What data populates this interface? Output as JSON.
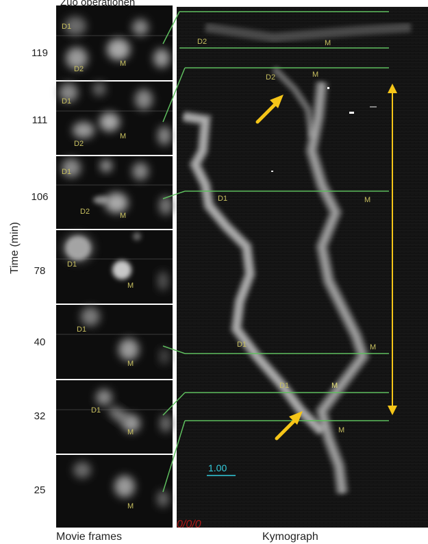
{
  "header_partial": "Zuo operationen",
  "y_axis_label": "Time (min)",
  "time_labels": [
    "119",
    "111",
    "106",
    "78",
    "40",
    "32",
    "25"
  ],
  "bottom_labels": {
    "movie": "Movie frames",
    "kymo": "Kymograph"
  },
  "frames": [
    {
      "time": "119",
      "labels": {
        "d1": "D1",
        "d2": "D2",
        "m": "M"
      }
    },
    {
      "time": "111",
      "labels": {
        "d1": "D1",
        "d2": "D2",
        "m": "M"
      }
    },
    {
      "time": "106",
      "labels": {
        "d1": "D1",
        "d2": "D2",
        "m": "M"
      }
    },
    {
      "time": "78",
      "labels": {
        "d1": "D1",
        "m": "M"
      }
    },
    {
      "time": "40",
      "labels": {
        "d1": "D1",
        "m": "M"
      }
    },
    {
      "time": "32",
      "labels": {
        "d1": "D1",
        "m": "M"
      }
    },
    {
      "time": "25",
      "labels": {
        "m": "M"
      }
    }
  ],
  "kymo_labels": {
    "top_d2": "D2",
    "top_m": "M",
    "d2": "D2",
    "m_119": "M",
    "d1_106": "D1",
    "m_106": "M",
    "d1_40": "D1",
    "m_40": "M",
    "d1_32": "D1",
    "m_32": "M",
    "m_25": "M"
  },
  "scale_value": "1.00",
  "timestamp": "0/0/0",
  "colors": {
    "background": "#ffffff",
    "image_bg": "#0d0d0d",
    "green_line": "#5fbf5f",
    "label_yellow": "#c8c060",
    "arrow": "#f5c518",
    "scale_cyan": "#33ccdd",
    "timestamp_red": "#b01818"
  }
}
